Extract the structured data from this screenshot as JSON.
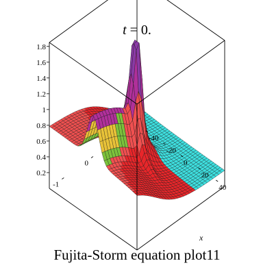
{
  "chart_data": {
    "type": "surface",
    "title": "t = 0.",
    "title_parts": {
      "var": "t",
      "rest": " = 0."
    },
    "caption": "Fujita-Storm equation plot11",
    "xlabel": "x",
    "ylabel": "",
    "zlabel": "",
    "x_ticks": [
      "-40",
      "-20",
      "0",
      "20",
      "40"
    ],
    "y_ticks": [
      "-1",
      "0"
    ],
    "z_ticks": [
      "0.2",
      "0.4",
      "0.6",
      "0.8",
      "1",
      "1.2",
      "1.4",
      "1.6",
      "1.8"
    ],
    "xlim": [
      -50,
      50
    ],
    "ylim": [
      -1.5,
      1.5
    ],
    "zlim": [
      0,
      1.85
    ],
    "peak": {
      "x": 0,
      "y": 0,
      "z": 1.85
    },
    "colors": {
      "low": "#e8262a",
      "mid_red": "#f05050",
      "magenta": "#b0309a",
      "violet": "#8a3aa6",
      "green": "#7cc23c",
      "yellow": "#e8c238",
      "cyan": "#3ee0e0",
      "grid": "#000000"
    }
  }
}
